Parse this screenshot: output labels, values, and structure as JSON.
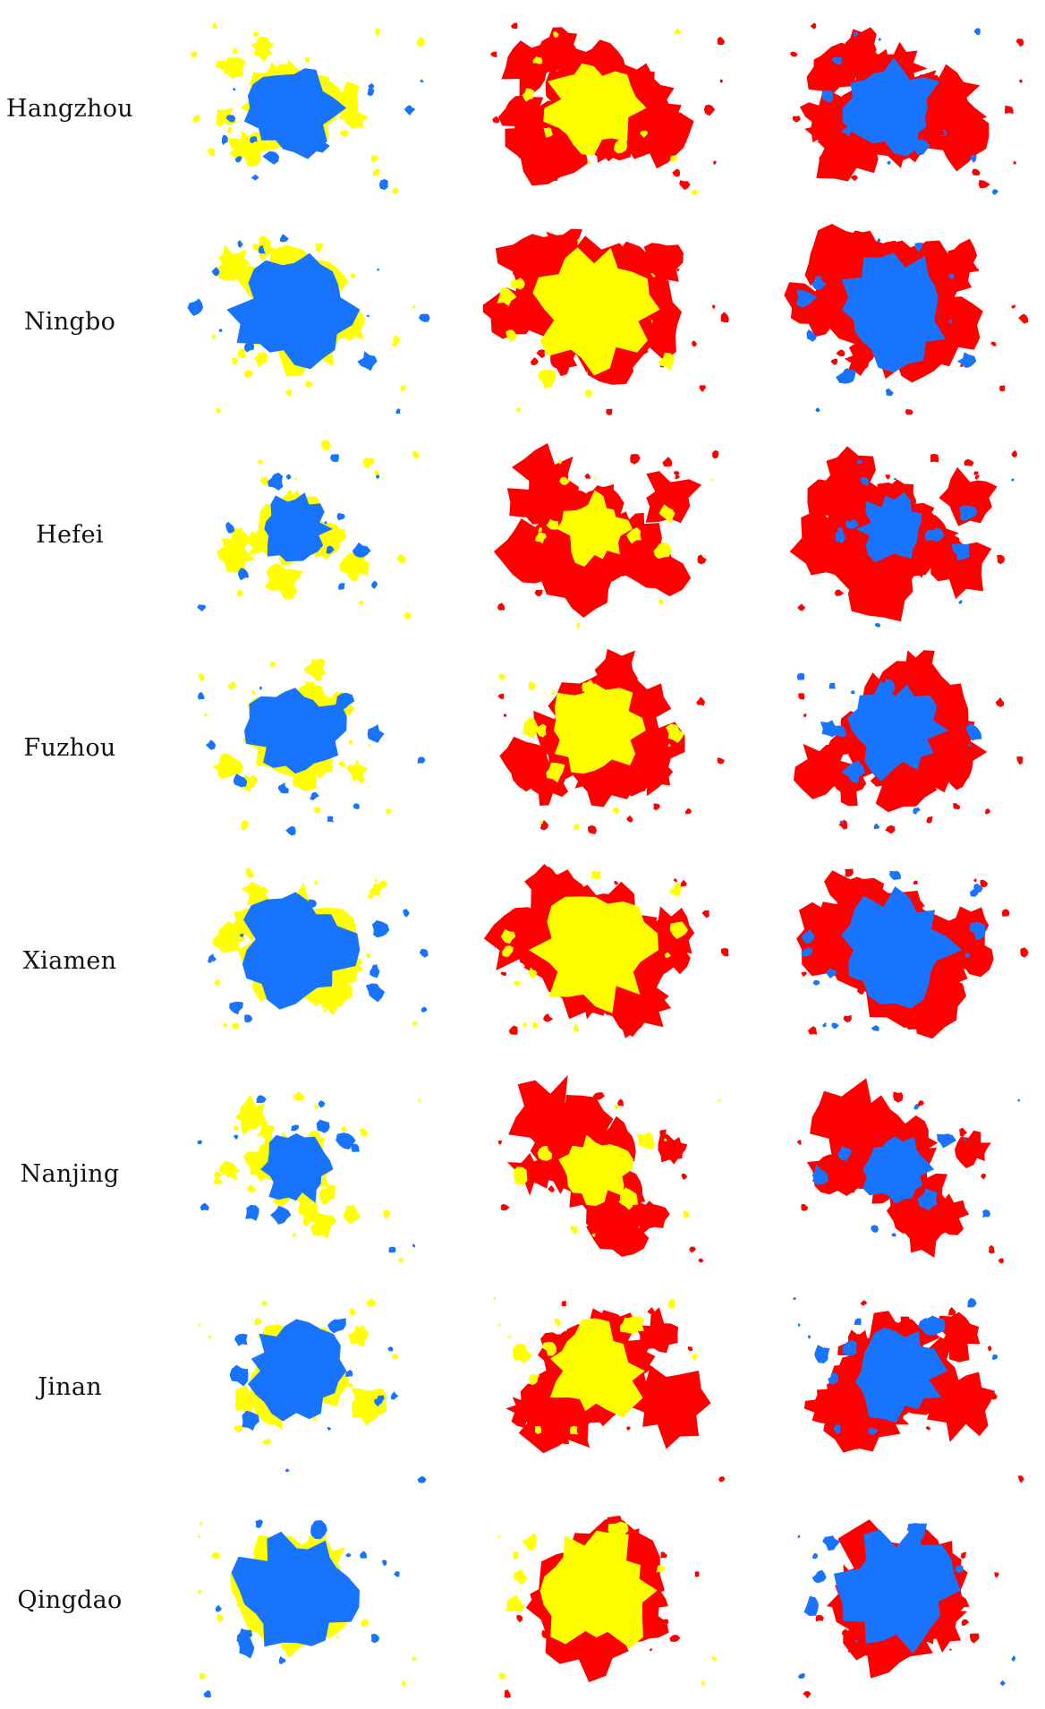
{
  "colors": {
    "yellow": "#ffff00",
    "blue": "#1874ff",
    "red": "#ff0000",
    "background": "#ffffff"
  },
  "rows": [
    {
      "label": "Hangzhou"
    },
    {
      "label": "Ningbo"
    },
    {
      "label": "Hefei"
    },
    {
      "label": "Fuzhou"
    },
    {
      "label": "Xiamen"
    },
    {
      "label": "Nanjing"
    },
    {
      "label": "Jinan"
    },
    {
      "label": "Qingdao"
    }
  ]
}
